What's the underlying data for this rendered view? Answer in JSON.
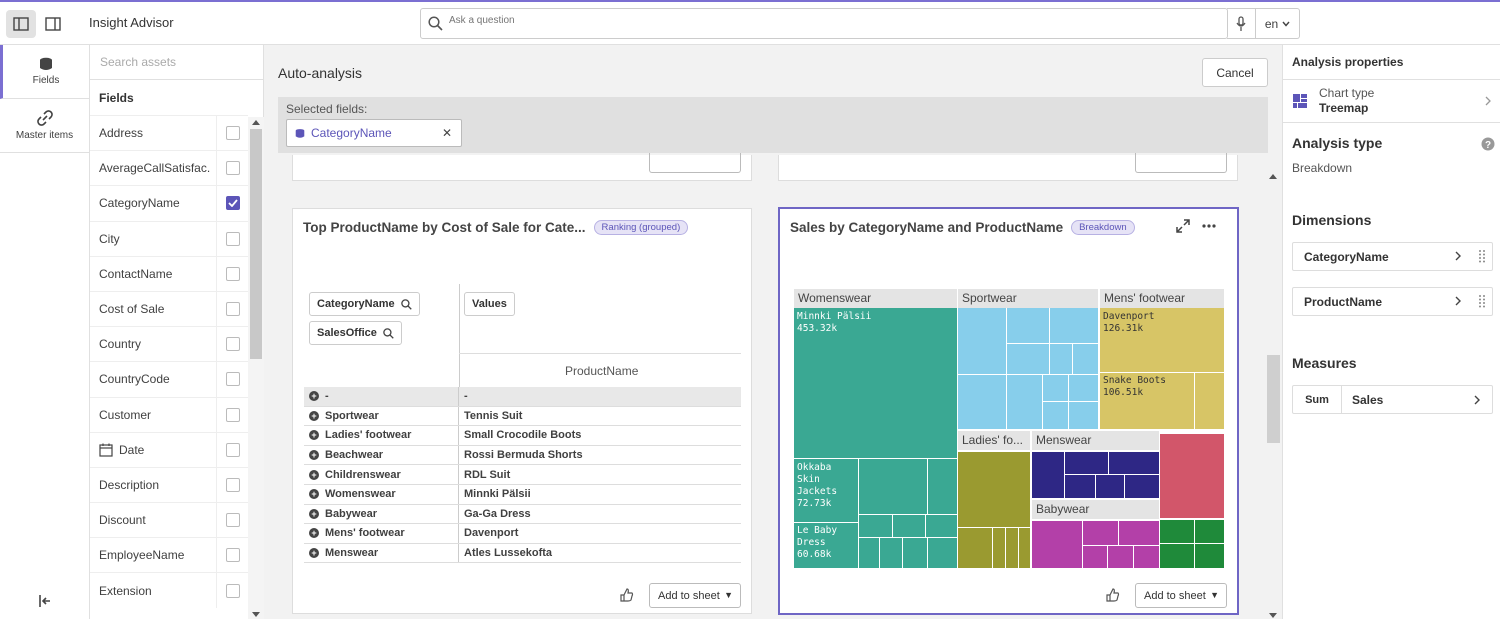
{
  "app": {
    "title": "Insight Advisor"
  },
  "search": {
    "placeholder": "Ask a question",
    "language": "en"
  },
  "leftnav": {
    "fields_label": "Fields",
    "master_items_label": "Master items"
  },
  "assets": {
    "search_placeholder": "Search assets",
    "header": "Fields",
    "fields": [
      {
        "name": "Address",
        "checked": false
      },
      {
        "name": "AverageCallSatisfac...",
        "checked": false
      },
      {
        "name": "CategoryName",
        "checked": true
      },
      {
        "name": "City",
        "checked": false
      },
      {
        "name": "ContactName",
        "checked": false
      },
      {
        "name": "Cost of Sale",
        "checked": false
      },
      {
        "name": "Country",
        "checked": false
      },
      {
        "name": "CountryCode",
        "checked": false
      },
      {
        "name": "Customer",
        "checked": false
      },
      {
        "name": "Date",
        "checked": false,
        "icon": "calendar-icon"
      },
      {
        "name": "Description",
        "checked": false
      },
      {
        "name": "Discount",
        "checked": false
      },
      {
        "name": "EmployeeName",
        "checked": false
      },
      {
        "name": "Extension",
        "checked": false
      }
    ]
  },
  "main": {
    "title": "Auto-analysis",
    "cancel_label": "Cancel",
    "selected_label": "Selected fields:",
    "selected_chip": "CategoryName"
  },
  "card1": {
    "title": "Top ProductName by Cost of Sale for Cate...",
    "badge": "Ranking (grouped)",
    "dim1": "CategoryName",
    "dim2": "SalesOffice",
    "values_label": "Values",
    "col_header": "ProductName",
    "rows": [
      {
        "c1": "-",
        "c2": "-"
      },
      {
        "c1": "Sportwear",
        "c2": "Tennis Suit"
      },
      {
        "c1": "Ladies' footwear",
        "c2": "Small Crocodile Boots"
      },
      {
        "c1": "Beachwear",
        "c2": "Rossi Bermuda Shorts"
      },
      {
        "c1": "Childrenswear",
        "c2": "RDL Suit"
      },
      {
        "c1": "Womenswear",
        "c2": "Minnki Pälsii"
      },
      {
        "c1": "Babywear",
        "c2": "Ga-Ga Dress"
      },
      {
        "c1": "Mens' footwear",
        "c2": "Davenport"
      },
      {
        "c1": "Menswear",
        "c2": "Atles Lussekofta"
      }
    ],
    "add_to_sheet": "Add to sheet"
  },
  "card2": {
    "title": "Sales by CategoryName and ProductName",
    "badge": "Breakdown",
    "add_to_sheet": "Add to sheet"
  },
  "chart_data": {
    "type": "treemap",
    "groups": [
      {
        "name": "Womenswear",
        "color": "#3aa893",
        "leaves": [
          {
            "name": "Minnki Pälsii",
            "value": "453.32k"
          },
          {
            "name": "Okkaba Skin Jackets",
            "value": "72.73k"
          },
          {
            "name": "Le Baby Dress",
            "value": "60.68k"
          }
        ]
      },
      {
        "name": "Sportwear",
        "color": "#87ceeb"
      },
      {
        "name": "Mens' footwear",
        "color": "#d7c566",
        "leaves": [
          {
            "name": "Davenport",
            "value": "126.31k"
          },
          {
            "name": "Snake Boots",
            "value": "106.51k"
          }
        ]
      },
      {
        "name": "Ladies' fo...",
        "color": "#9a9a30"
      },
      {
        "name": "Menswear",
        "color": "#2e2785"
      },
      {
        "name": "Babywear",
        "color": "#b340a8"
      }
    ]
  },
  "props": {
    "header": "Analysis properties",
    "chart_type_label": "Chart type",
    "chart_type_value": "Treemap",
    "analysis_type_title": "Analysis type",
    "analysis_type_value": "Breakdown",
    "dimensions_title": "Dimensions",
    "dimensions": [
      "CategoryName",
      "ProductName"
    ],
    "measures_title": "Measures",
    "measure_agg": "Sum",
    "measure_field": "Sales"
  }
}
